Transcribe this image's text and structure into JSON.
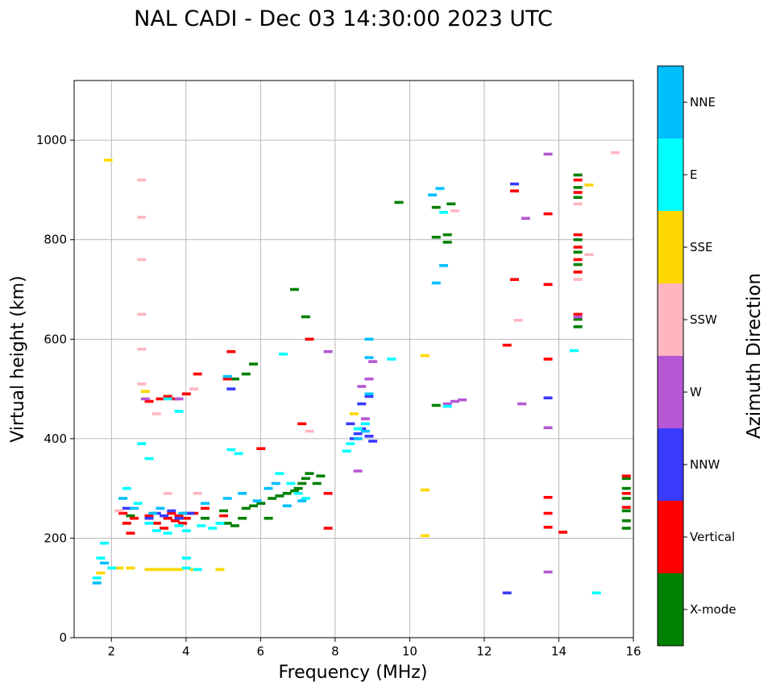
{
  "chart_data": {
    "type": "scatter",
    "title": "NAL CADI - Dec 03 14:30:00 2023 UTC",
    "xlabel": "Frequency (MHz)",
    "ylabel": "Virtual height (km)",
    "xlim": [
      1,
      16
    ],
    "ylim": [
      0,
      1120
    ],
    "xticks": [
      2,
      4,
      6,
      8,
      10,
      12,
      14,
      16
    ],
    "yticks": [
      0,
      200,
      400,
      600,
      800,
      1000
    ],
    "grid": true,
    "colorbar": {
      "label": "Azimuth Direction",
      "categories": [
        {
          "name": "X-mode",
          "color": "#008000"
        },
        {
          "name": "Vertical",
          "color": "#ff0000"
        },
        {
          "name": "NNW",
          "color": "#3a3aff"
        },
        {
          "name": "W",
          "color": "#b657d4"
        },
        {
          "name": "SSW",
          "color": "#ffb6c1"
        },
        {
          "name": "SSE",
          "color": "#ffd700"
        },
        {
          "name": "E",
          "color": "#00ffff"
        },
        {
          "name": "NNE",
          "color": "#00bfff"
        }
      ]
    },
    "series": [
      {
        "name": "X-mode",
        "points": [
          [
            2.5,
            245
          ],
          [
            3.5,
            240
          ],
          [
            4,
            250
          ],
          [
            4.5,
            240
          ],
          [
            5,
            255
          ],
          [
            5.1,
            230
          ],
          [
            5.3,
            225
          ],
          [
            5.5,
            240
          ],
          [
            5.6,
            260
          ],
          [
            5.8,
            265
          ],
          [
            6,
            270
          ],
          [
            6.2,
            240
          ],
          [
            6.3,
            280
          ],
          [
            6.5,
            285
          ],
          [
            6.7,
            290
          ],
          [
            6.9,
            295
          ],
          [
            7,
            300
          ],
          [
            7.1,
            310
          ],
          [
            7.2,
            320
          ],
          [
            7.3,
            330
          ],
          [
            7.5,
            310
          ],
          [
            7.6,
            325
          ],
          [
            5.3,
            520
          ],
          [
            5.6,
            530
          ],
          [
            5.8,
            550
          ],
          [
            6.9,
            700
          ],
          [
            7.2,
            645
          ],
          [
            9.7,
            875
          ],
          [
            10.7,
            865
          ],
          [
            10.7,
            805
          ],
          [
            11,
            795
          ],
          [
            11,
            810
          ],
          [
            11.1,
            872
          ],
          [
            10.7,
            467
          ],
          [
            14.5,
            930
          ],
          [
            14.5,
            905
          ],
          [
            14.5,
            885
          ],
          [
            14.5,
            800
          ],
          [
            14.5,
            775
          ],
          [
            14.5,
            750
          ],
          [
            14.5,
            640
          ],
          [
            14.5,
            625
          ],
          [
            15.8,
            320
          ],
          [
            15.8,
            300
          ],
          [
            15.8,
            280
          ],
          [
            15.8,
            255
          ],
          [
            15.8,
            235
          ],
          [
            15.8,
            220
          ]
        ]
      },
      {
        "name": "Vertical",
        "points": [
          [
            2.3,
            250
          ],
          [
            2.4,
            230
          ],
          [
            2.5,
            210
          ],
          [
            2.6,
            240
          ],
          [
            3,
            245
          ],
          [
            3.2,
            230
          ],
          [
            3.4,
            220
          ],
          [
            3.5,
            240
          ],
          [
            3.6,
            250
          ],
          [
            3.7,
            235
          ],
          [
            3.8,
            245
          ],
          [
            3.9,
            230
          ],
          [
            4,
            240
          ],
          [
            4.2,
            250
          ],
          [
            4.5,
            260
          ],
          [
            5,
            245
          ],
          [
            3,
            475
          ],
          [
            3.3,
            480
          ],
          [
            3.5,
            485
          ],
          [
            3.7,
            480
          ],
          [
            4,
            490
          ],
          [
            4.3,
            530
          ],
          [
            5.1,
            520
          ],
          [
            5.2,
            575
          ],
          [
            6,
            380
          ],
          [
            7.1,
            430
          ],
          [
            7.3,
            600
          ],
          [
            7.8,
            290
          ],
          [
            7.8,
            220
          ],
          [
            12.6,
            588
          ],
          [
            12.8,
            720
          ],
          [
            12.8,
            898
          ],
          [
            13.7,
            852
          ],
          [
            13.7,
            710
          ],
          [
            13.7,
            560
          ],
          [
            13.7,
            282
          ],
          [
            13.7,
            250
          ],
          [
            13.7,
            222
          ],
          [
            14.1,
            212
          ],
          [
            14.5,
            920
          ],
          [
            14.5,
            895
          ],
          [
            14.5,
            810
          ],
          [
            14.5,
            785
          ],
          [
            14.5,
            760
          ],
          [
            14.5,
            735
          ],
          [
            14.5,
            650
          ],
          [
            15.8,
            325
          ],
          [
            15.8,
            290
          ],
          [
            15.8,
            262
          ]
        ]
      },
      {
        "name": "NNW",
        "points": [
          [
            2.4,
            260
          ],
          [
            3,
            240
          ],
          [
            3.2,
            250
          ],
          [
            3.4,
            245
          ],
          [
            3.6,
            255
          ],
          [
            3.8,
            240
          ],
          [
            4.1,
            250
          ],
          [
            5.2,
            500
          ],
          [
            8.4,
            430
          ],
          [
            8.5,
            400
          ],
          [
            8.6,
            410
          ],
          [
            8.7,
            420
          ],
          [
            8.8,
            430
          ],
          [
            8.9,
            405
          ],
          [
            9,
            395
          ],
          [
            8.7,
            470
          ],
          [
            8.9,
            485
          ],
          [
            12.6,
            90
          ],
          [
            12.8,
            912
          ],
          [
            13.7,
            482
          ]
        ]
      },
      {
        "name": "W",
        "points": [
          [
            2.9,
            480
          ],
          [
            3.8,
            480
          ],
          [
            8.7,
            505
          ],
          [
            8.9,
            520
          ],
          [
            8.8,
            440
          ],
          [
            9,
            555
          ],
          [
            8.6,
            335
          ],
          [
            11,
            470
          ],
          [
            11.2,
            475
          ],
          [
            11.4,
            478
          ],
          [
            7.8,
            575
          ],
          [
            13,
            470
          ],
          [
            13.1,
            843
          ],
          [
            13.7,
            972
          ],
          [
            13.7,
            422
          ],
          [
            13.7,
            132
          ],
          [
            14.5,
            645
          ]
        ]
      },
      {
        "name": "SSW",
        "points": [
          [
            2.8,
            920
          ],
          [
            2.8,
            845
          ],
          [
            2.8,
            760
          ],
          [
            2.8,
            650
          ],
          [
            2.8,
            580
          ],
          [
            2.8,
            510
          ],
          [
            3.2,
            450
          ],
          [
            4.2,
            500
          ],
          [
            2.2,
            255
          ],
          [
            3.5,
            290
          ],
          [
            4.3,
            290
          ],
          [
            7.3,
            415
          ],
          [
            11.2,
            858
          ],
          [
            12.9,
            638
          ],
          [
            14.5,
            872
          ],
          [
            14.5,
            720
          ],
          [
            14.8,
            770
          ],
          [
            15.5,
            975
          ]
        ]
      },
      {
        "name": "SSE",
        "points": [
          [
            1.9,
            960
          ],
          [
            2.9,
            495
          ],
          [
            3,
            137
          ],
          [
            3.2,
            137
          ],
          [
            3.4,
            137
          ],
          [
            3.6,
            137
          ],
          [
            3.8,
            137
          ],
          [
            4.2,
            137
          ],
          [
            4.9,
            137
          ],
          [
            2.2,
            140
          ],
          [
            2.5,
            140
          ],
          [
            1.7,
            130
          ],
          [
            8.5,
            450
          ],
          [
            10.4,
            567
          ],
          [
            10.4,
            297
          ],
          [
            10.4,
            205
          ],
          [
            14.8,
            910
          ]
        ]
      },
      {
        "name": "E",
        "points": [
          [
            1.6,
            120
          ],
          [
            1.7,
            160
          ],
          [
            1.8,
            190
          ],
          [
            2.0,
            140
          ],
          [
            2.4,
            300
          ],
          [
            2.7,
            270
          ],
          [
            3,
            230
          ],
          [
            3.2,
            215
          ],
          [
            3.5,
            210
          ],
          [
            3.8,
            225
          ],
          [
            4,
            215
          ],
          [
            4.4,
            225
          ],
          [
            4.7,
            220
          ],
          [
            4.9,
            230
          ],
          [
            5.2,
            378
          ],
          [
            5.4,
            370
          ],
          [
            6.6,
            570
          ],
          [
            6.5,
            330
          ],
          [
            6.8,
            310
          ],
          [
            7,
            290
          ],
          [
            7.2,
            280
          ],
          [
            3.0,
            360
          ],
          [
            2.8,
            390
          ],
          [
            3.5,
            480
          ],
          [
            3.8,
            455
          ],
          [
            4.0,
            160
          ],
          [
            4.0,
            140
          ],
          [
            4.3,
            137
          ],
          [
            8.3,
            375
          ],
          [
            8.4,
            390
          ],
          [
            8.6,
            420
          ],
          [
            8.8,
            430
          ],
          [
            9.5,
            560
          ],
          [
            10.9,
            855
          ],
          [
            11,
            465
          ],
          [
            14.4,
            577
          ],
          [
            15,
            90
          ]
        ]
      },
      {
        "name": "NNE",
        "points": [
          [
            1.6,
            110
          ],
          [
            1.8,
            150
          ],
          [
            2.3,
            280
          ],
          [
            2.6,
            260
          ],
          [
            3.1,
            250
          ],
          [
            3.3,
            260
          ],
          [
            3.9,
            250
          ],
          [
            4.5,
            270
          ],
          [
            5.1,
            280
          ],
          [
            5.5,
            290
          ],
          [
            5.9,
            275
          ],
          [
            6.2,
            300
          ],
          [
            6.4,
            310
          ],
          [
            6.7,
            265
          ],
          [
            7.1,
            275
          ],
          [
            8.6,
            400
          ],
          [
            8.8,
            415
          ],
          [
            8.9,
            490
          ],
          [
            8.9,
            600
          ],
          [
            8.9,
            563
          ],
          [
            10.6,
            890
          ],
          [
            10.8,
            903
          ],
          [
            10.7,
            713
          ],
          [
            10.9,
            748
          ],
          [
            5.1,
            525
          ]
        ]
      }
    ]
  }
}
